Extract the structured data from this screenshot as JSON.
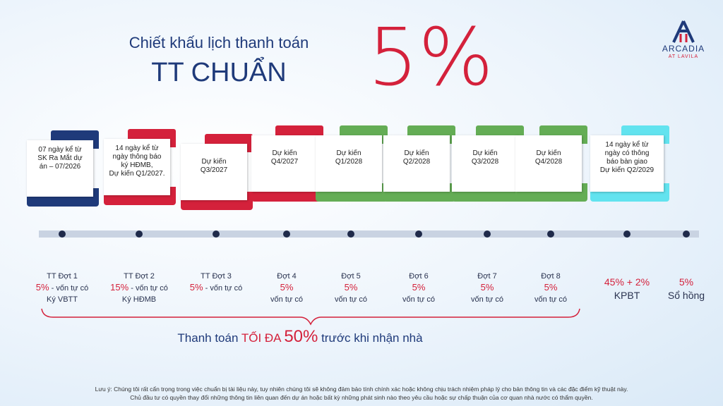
{
  "header": {
    "subtitle": "Chiết khấu lịch thanh toán",
    "title": "TT CHUẨN",
    "discount": "5%"
  },
  "logo": {
    "name": "ARCADIA",
    "tagline": "AT LAVILA"
  },
  "steps": [
    {
      "card": [
        "07 ngày kể từ",
        "SK Ra Mắt dự",
        "án – 07/2026"
      ],
      "color": "#1f3a7a",
      "label": "TT Đợt 1",
      "pct": "5%",
      "note": " - vốn tự có",
      "sub": "Ký VBTT"
    },
    {
      "card": [
        "14 ngày kể từ",
        "ngày thông báo",
        "ký HĐMB,",
        "Dự kiến Q1/2027."
      ],
      "color": "#d4213b",
      "label": "TT Đợt 2",
      "pct": "15%",
      "note": " - vốn tự có",
      "sub": "Ký HĐMB"
    },
    {
      "card": [
        "Dự kiến",
        "Q3/2027"
      ],
      "color": "#d4213b",
      "label": "TT Đợt 3",
      "pct": "5%",
      "note": " - vốn tự có"
    },
    {
      "card": [
        "Dự kiến",
        "Q4/2027"
      ],
      "color": "#d4213b",
      "label": "Đợt 4",
      "pct": "5%",
      "sub": "vốn tự có"
    },
    {
      "card": [
        "Dự kiến",
        "Q1/2028"
      ],
      "color": "#64ad55",
      "label": "Đợt 5",
      "pct": "5%",
      "sub": "vốn tự có"
    },
    {
      "card": [
        "Dự kiến",
        "Q2/2028"
      ],
      "color": "#64ad55",
      "label": "Đợt 6",
      "pct": "5%",
      "sub": "vốn tự có"
    },
    {
      "card": [
        "Dự kiến",
        "Q3/2028"
      ],
      "color": "#64ad55",
      "label": "Đợt 7",
      "pct": "5%",
      "sub": "vốn tự có"
    },
    {
      "card": [
        "Dự kiến",
        "Q4/2028"
      ],
      "color": "#64ad55",
      "label": "Đợt 8",
      "pct": "5%",
      "sub": "vốn tự có"
    },
    {
      "card": [
        "14 ngày kể từ",
        "ngày có thông",
        "báo bàn giao",
        "Dự kiến Q2/2029"
      ],
      "color": "#62e3ef",
      "pct": "45% + 2%",
      "sub": "KPBT"
    },
    {
      "pct": "5%",
      "sub": "Sổ hồng"
    }
  ],
  "summary": {
    "prefix": "Thanh toán ",
    "emphasis": "TỐI ĐA ",
    "amount": "50%",
    "suffix": " trước khi nhận nhà"
  },
  "footnote": [
    "Lưu ý: Chúng tôi rất cẩn trọng trong việc chuẩn bị tài liệu này, tuy nhiên chúng tôi sẽ không đảm bảo tính chính xác hoặc không chịu trách nhiệm pháp lý cho bản thông tin và các đặc điểm kỹ thuật này.",
    "Chủ đầu tư có quyền thay đổi những thông tin liên quan đến dự án hoặc bất kỳ những phát sinh nào theo yêu cầu hoặc sự chấp thuận của cơ quan nhà nước có thẩm quyền."
  ]
}
